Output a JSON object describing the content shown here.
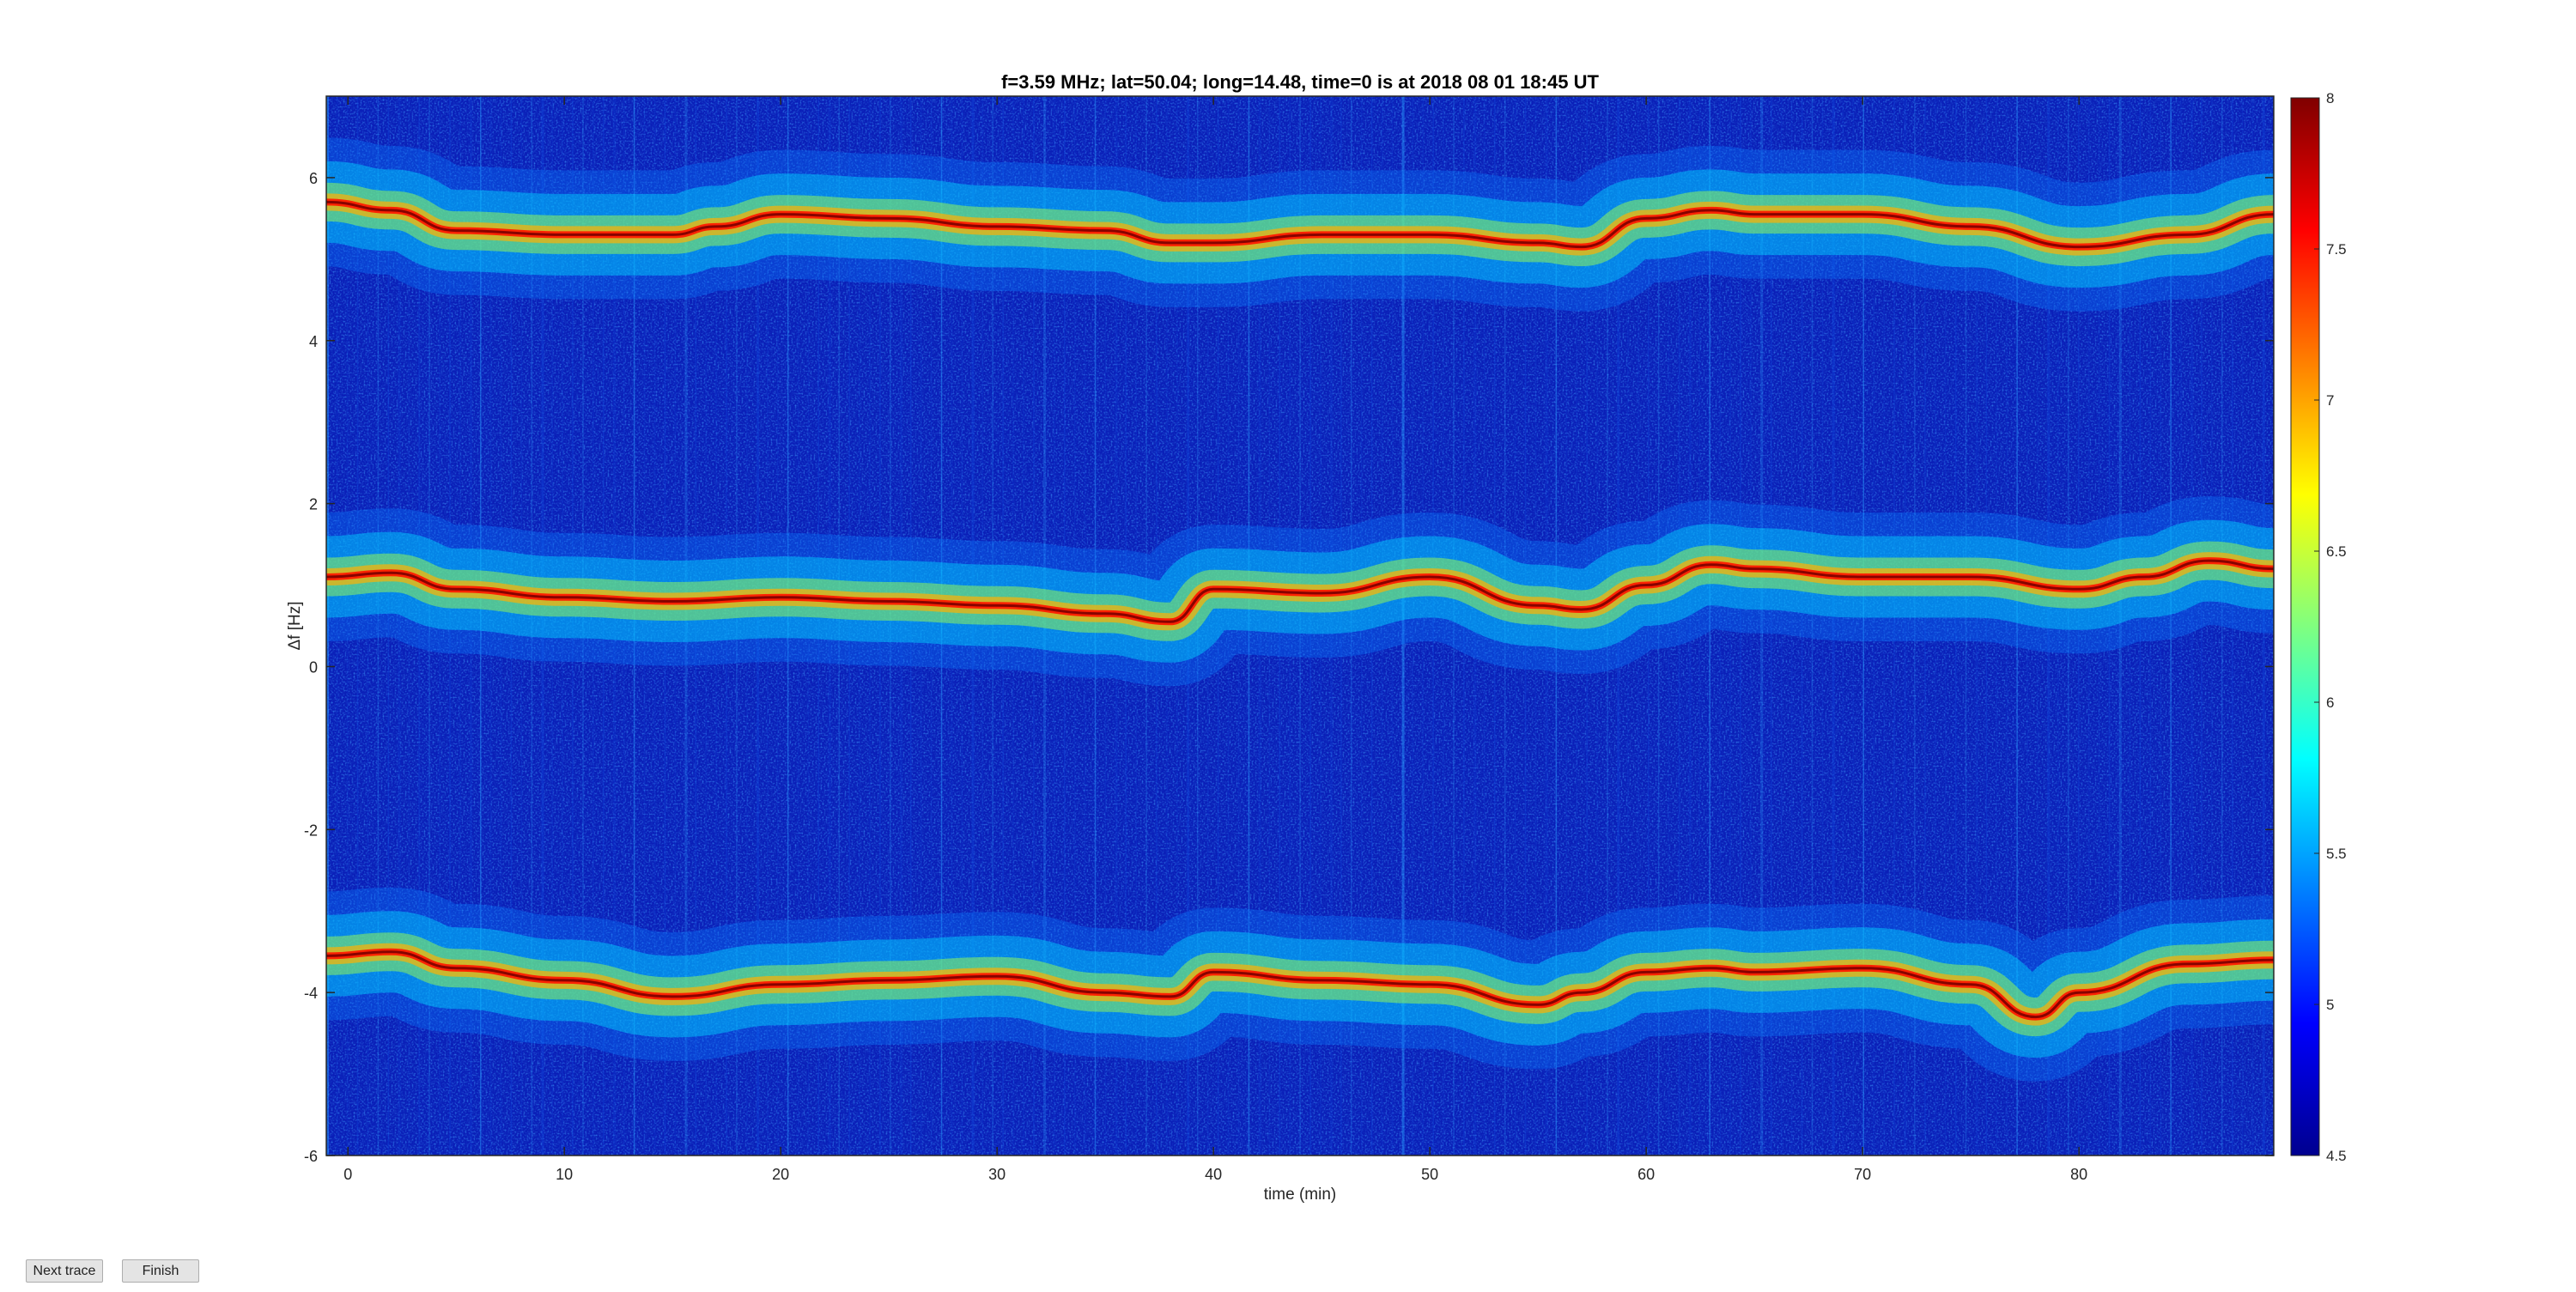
{
  "chart_data": {
    "type": "heatmap",
    "title": "f=3.59 MHz;  lat=50.04; long=14.48, time=0 is at 2018 08 01 18:45 UT",
    "xlabel": "time (min)",
    "ylabel": "Δf [Hz]",
    "xlim": [
      -1,
      89
    ],
    "ylim": [
      -6,
      7
    ],
    "xticks": [
      0,
      10,
      20,
      30,
      40,
      50,
      60,
      70,
      80
    ],
    "yticks": [
      6,
      4,
      2,
      0,
      -2,
      -4,
      -6
    ],
    "colormap": "jet",
    "colorbar": {
      "range": [
        4.5,
        8
      ],
      "ticks": [
        8,
        7.5,
        7,
        6.5,
        6,
        5.5,
        5,
        4.5
      ]
    },
    "traces": [
      {
        "x": [
          -1,
          2,
          5,
          10,
          15,
          17,
          20,
          25,
          30,
          35,
          38,
          40,
          45,
          50,
          55,
          57,
          60,
          63,
          65,
          70,
          75,
          80,
          85,
          89
        ],
        "y": [
          5.7,
          5.6,
          5.35,
          5.3,
          5.3,
          5.4,
          5.55,
          5.5,
          5.4,
          5.35,
          5.2,
          5.2,
          5.3,
          5.3,
          5.2,
          5.15,
          5.5,
          5.6,
          5.55,
          5.55,
          5.4,
          5.15,
          5.3,
          5.55
        ]
      },
      {
        "x": [
          -1,
          2,
          5,
          10,
          15,
          20,
          25,
          30,
          35,
          38,
          40,
          45,
          50,
          55,
          57,
          60,
          63,
          65,
          70,
          75,
          80,
          83,
          86,
          89
        ],
        "y": [
          1.1,
          1.15,
          0.95,
          0.85,
          0.8,
          0.85,
          0.8,
          0.75,
          0.65,
          0.55,
          0.95,
          0.9,
          1.1,
          0.75,
          0.7,
          1.0,
          1.25,
          1.2,
          1.1,
          1.1,
          0.95,
          1.1,
          1.3,
          1.2
        ]
      },
      {
        "x": [
          -1,
          2,
          5,
          10,
          15,
          20,
          25,
          30,
          35,
          38,
          40,
          45,
          50,
          55,
          57,
          60,
          63,
          65,
          70,
          75,
          78,
          80,
          85,
          89
        ],
        "y": [
          -3.55,
          -3.5,
          -3.7,
          -3.85,
          -4.05,
          -3.9,
          -3.85,
          -3.8,
          -4.0,
          -4.05,
          -3.75,
          -3.85,
          -3.9,
          -4.15,
          -4.0,
          -3.75,
          -3.7,
          -3.75,
          -3.7,
          -3.9,
          -4.3,
          -4.0,
          -3.65,
          -3.6
        ]
      }
    ]
  },
  "buttons": {
    "next_trace": "Next trace",
    "finish": "Finish"
  }
}
